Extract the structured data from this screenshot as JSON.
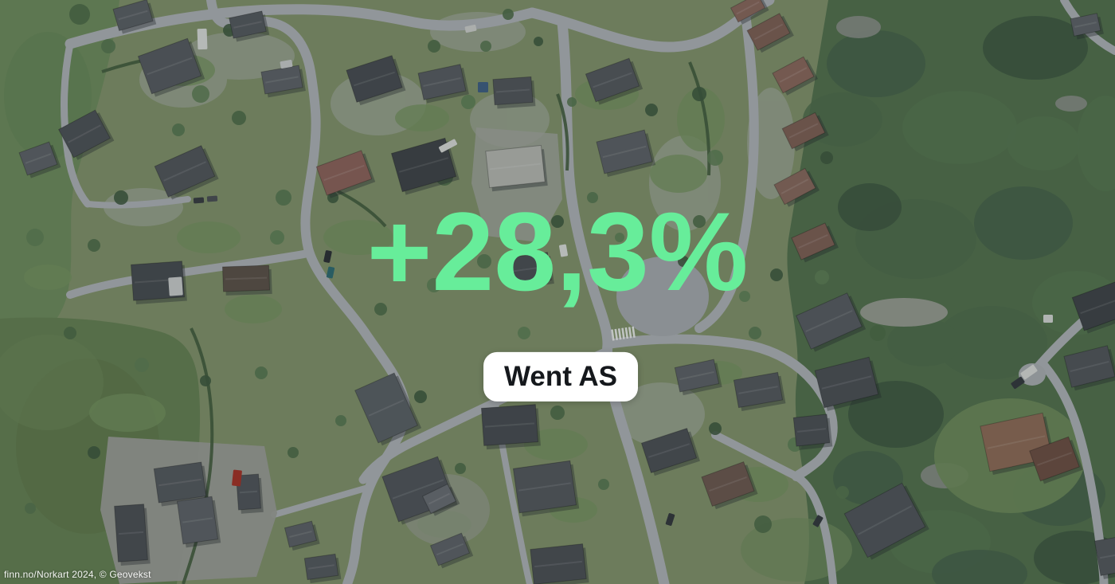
{
  "overlay": {
    "stat_value": "+28,3%",
    "company_label": "Went AS"
  },
  "map": {
    "attribution": "finn.no/Norkart 2024, © Geovekst"
  },
  "colors": {
    "stat_text": "#67ED9A",
    "badge_background": "#FFFFFF",
    "badge_text": "#15181C",
    "attribution_text": "#FFFFFF"
  }
}
